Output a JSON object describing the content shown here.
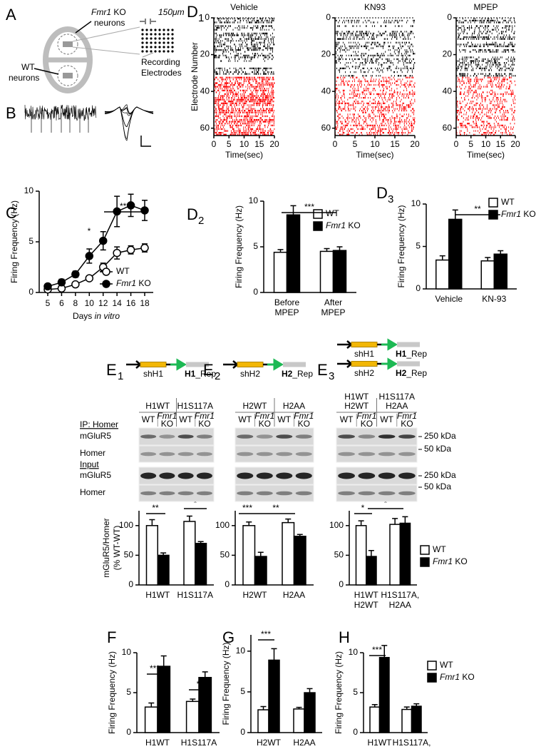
{
  "panels": [
    {
      "letter": "A"
    },
    {
      "letter": "B"
    },
    {
      "letter": "C"
    },
    {
      "letter": "D",
      "sub": "1"
    },
    {
      "letter": "D",
      "sub": "2"
    },
    {
      "letter": "D",
      "sub": "3"
    },
    {
      "letter": "F"
    },
    {
      "letter": "G"
    },
    {
      "letter": "H"
    }
  ],
  "diagram": {
    "ko_label": [
      "Fmr1 KO",
      "neurons"
    ],
    "wt_label": [
      "WT",
      "neurons"
    ],
    "scale": "150μm",
    "electrodes": [
      "Recording",
      "Electrodes"
    ]
  },
  "blot_rows": {
    "ip": "IP: Homer",
    "input": "Input",
    "labels": [
      "mGluR5",
      "Homer",
      "mGluR5",
      "Homer"
    ],
    "markers": [
      "250 kDa",
      "50 kDa",
      "250 kDa",
      "50 kDa"
    ]
  },
  "blot_panels": [
    {
      "letter": "E",
      "sub": "1",
      "constructs": [
        {
          "sh": "shH1",
          "rep": "H1",
          "suffix": "_Rep"
        }
      ],
      "groups": [
        [
          "H1WT"
        ],
        [
          "H1S117A"
        ]
      ],
      "lanes": [
        [
          "WT"
        ],
        [
          "Fmr1",
          "KO"
        ],
        [
          "WT"
        ],
        [
          "Fmr1",
          "KO"
        ]
      ]
    },
    {
      "letter": "E",
      "sub": "2",
      "constructs": [
        {
          "sh": "shH2",
          "rep": "H2",
          "suffix": "_Rep"
        }
      ],
      "groups": [
        [
          "H2WT"
        ],
        [
          "H2AA"
        ]
      ],
      "lanes": [
        [
          "WT"
        ],
        [
          "Fmr1",
          "KO"
        ],
        [
          "WT"
        ],
        [
          "Fmr1",
          "KO"
        ]
      ]
    },
    {
      "letter": "E",
      "sub": "3",
      "constructs": [
        {
          "sh": "shH1",
          "rep": "H1",
          "suffix": "_Rep"
        },
        {
          "sh": "shH2",
          "rep": "H2",
          "suffix": "_Rep"
        }
      ],
      "groups": [
        [
          "H1WT",
          "H2WT"
        ],
        [
          "H1S117A",
          "H2AA"
        ]
      ],
      "lanes": [
        [
          "WT"
        ],
        [
          "Fmr1",
          "KO"
        ],
        [
          "WT"
        ],
        [
          "Fmr1",
          "KO"
        ]
      ]
    }
  ],
  "chart_data": [
    {
      "type": "line",
      "categories": [
        5,
        6,
        8,
        10,
        12,
        14,
        16,
        18
      ],
      "xlabel": "Days in vitro",
      "ylabel": "Firing  Frequency (Hz)",
      "ylim": [
        0,
        10
      ],
      "yticks": [
        0,
        5,
        10
      ],
      "legend": "lower right",
      "series": [
        {
          "name": "WT",
          "color": "#ffffff",
          "values": [
            0.3,
            0.4,
            0.8,
            1.4,
            2.5,
            3.9,
            4.2,
            4.4
          ],
          "errors": [
            0.1,
            0.1,
            0.2,
            0.2,
            0.4,
            0.6,
            0.4,
            0.4
          ]
        },
        {
          "name": "Fmr1 KO",
          "color": "#000000",
          "values": [
            0.6,
            1.0,
            1.8,
            3.6,
            5.1,
            8.0,
            8.6,
            8.1
          ],
          "errors": [
            0.1,
            0.3,
            0.3,
            0.7,
            0.9,
            1.5,
            1.1,
            1.0
          ]
        }
      ],
      "annotations": [
        "*",
        "***"
      ]
    },
    {
      "type": "raster",
      "title": "Vehicle",
      "xlim": [
        0,
        20
      ],
      "xticks": [
        0,
        5,
        10,
        15,
        20
      ],
      "ylim": [
        0,
        64
      ],
      "yticks": [
        0,
        20,
        40,
        60
      ],
      "xlabel": "Time(sec)",
      "ylabel": "Electrode Number",
      "colors": [
        "#000000",
        "#ff0000"
      ]
    },
    {
      "type": "raster",
      "title": "KN93",
      "xlim": [
        0,
        20
      ],
      "xticks": [
        0,
        5,
        10,
        15,
        20
      ],
      "ylim": [
        0,
        64
      ],
      "yticks": [
        0,
        20,
        40,
        60
      ],
      "xlabel": "Time(sec)",
      "colors": [
        "#000000",
        "#ff0000"
      ]
    },
    {
      "type": "raster",
      "title": "MPEP",
      "xlim": [
        0,
        20
      ],
      "xticks": [
        0,
        5,
        10,
        15,
        20
      ],
      "ylim": [
        0,
        64
      ],
      "yticks": [
        0,
        20,
        40,
        60
      ],
      "xlabel": "Time(sec)",
      "colors": [
        "#000000",
        "#ff0000"
      ]
    },
    {
      "type": "bar",
      "categories": [
        [
          "Before",
          "MPEP"
        ],
        [
          "After",
          "MPEP"
        ]
      ],
      "ylabel": "Firing  Frequency (Hz)",
      "ylim": [
        0,
        10
      ],
      "yticks": [
        0,
        5,
        10
      ],
      "legend": "upper right",
      "series": [
        {
          "name": "WT",
          "color": "#ffffff",
          "values": [
            4.4,
            4.5
          ],
          "errors": [
            0.3,
            0.3
          ]
        },
        {
          "name": "Fmr1 KO",
          "color": "#000000",
          "values": [
            8.5,
            4.6
          ],
          "errors": [
            1.0,
            0.4
          ]
        }
      ],
      "annotations": [
        "***"
      ]
    },
    {
      "type": "bar",
      "categories": [
        "Vehicle",
        "KN-93"
      ],
      "ylabel": "Firing  Frequency (Hz)",
      "ylim": [
        0,
        10
      ],
      "yticks": [
        0,
        5,
        10
      ],
      "legend": "upper right",
      "series": [
        {
          "name": "WT",
          "color": "#ffffff",
          "values": [
            3.4,
            3.3
          ],
          "errors": [
            0.5,
            0.4
          ]
        },
        {
          "name": "Fmr1 KO",
          "color": "#000000",
          "values": [
            8.2,
            4.1
          ],
          "errors": [
            1.1,
            0.4
          ]
        }
      ],
      "annotations": [
        "**"
      ]
    },
    {
      "type": "bar",
      "categories": [
        "H1WT",
        "H1S117A"
      ],
      "ylabel": [
        "mGluR5/Homer",
        "(% WT-WT)"
      ],
      "ylim": [
        0,
        125
      ],
      "yticks": [
        0,
        50,
        100
      ],
      "series": [
        {
          "name": "WT",
          "color": "#ffffff",
          "values": [
            100,
            107
          ],
          "errors": [
            10,
            9
          ]
        },
        {
          "name": "Fmr1 KO",
          "color": "#000000",
          "values": [
            50,
            70
          ],
          "errors": [
            4,
            3
          ]
        }
      ],
      "annotations": [
        "**",
        "*"
      ]
    },
    {
      "type": "bar",
      "categories": [
        "H2WT",
        "H2AA"
      ],
      "ylim": [
        0,
        125
      ],
      "yticks": [
        0,
        50,
        100
      ],
      "series": [
        {
          "name": "WT",
          "color": "#ffffff",
          "values": [
            100,
            105
          ],
          "errors": [
            6,
            6
          ]
        },
        {
          "name": "Fmr1 KO",
          "color": "#000000",
          "values": [
            48,
            82
          ],
          "errors": [
            7,
            3
          ]
        }
      ],
      "annotations": [
        "***",
        "**"
      ]
    },
    {
      "type": "bar",
      "categories": [
        [
          "H1WT",
          "H2WT"
        ],
        [
          "H1S117A,",
          "H2AA"
        ]
      ],
      "ylim": [
        0,
        125
      ],
      "yticks": [
        0,
        50,
        100
      ],
      "legend": "right",
      "series": [
        {
          "name": "WT",
          "color": "#ffffff",
          "values": [
            100,
            102
          ],
          "errors": [
            8,
            10
          ]
        },
        {
          "name": "Fmr1 KO",
          "color": "#000000",
          "values": [
            48,
            104
          ],
          "errors": [
            10,
            11
          ]
        }
      ],
      "annotations": [
        "*",
        "*"
      ]
    },
    {
      "type": "bar",
      "categories": [
        "H1WT",
        "H1S117A"
      ],
      "ylabel": "Firing  Frequency (Hz)",
      "ylim": [
        0,
        10
      ],
      "yticks": [
        0,
        5,
        10
      ],
      "series": [
        {
          "name": "WT",
          "color": "#ffffff",
          "values": [
            3.2,
            3.9
          ],
          "errors": [
            0.5,
            0.3
          ]
        },
        {
          "name": "Fmr1 KO",
          "color": "#000000",
          "values": [
            8.3,
            6.9
          ],
          "errors": [
            1.3,
            0.7
          ]
        }
      ],
      "annotations": [
        "***",
        "*"
      ]
    },
    {
      "type": "bar",
      "categories": [
        "H2WT",
        "H2AA"
      ],
      "ylabel": "Firing  Frequency (Hz)",
      "ylim": [
        0,
        12
      ],
      "yticks": [
        0,
        5,
        10
      ],
      "series": [
        {
          "name": "WT",
          "color": "#ffffff",
          "values": [
            2.8,
            2.9
          ],
          "errors": [
            0.4,
            0.2
          ]
        },
        {
          "name": "Fmr1 KO",
          "color": "#000000",
          "values": [
            8.9,
            4.9
          ],
          "errors": [
            1.4,
            0.5
          ]
        }
      ],
      "annotations": [
        "***"
      ]
    },
    {
      "type": "bar",
      "categories": [
        [
          "H1WT",
          "H2WT"
        ],
        [
          "H1S117A,",
          "H2AA"
        ]
      ],
      "ylabel": "Firing  Frequency (Hz)",
      "ylim": [
        0,
        10
      ],
      "yticks": [
        0,
        5,
        10
      ],
      "legend": "upper right",
      "series": [
        {
          "name": "WT",
          "color": "#ffffff",
          "values": [
            3.2,
            2.9
          ],
          "errors": [
            0.3,
            0.3
          ]
        },
        {
          "name": "Fmr1 KO",
          "color": "#000000",
          "values": [
            9.4,
            3.3
          ],
          "errors": [
            1.5,
            0.3
          ]
        }
      ],
      "annotations": [
        "***"
      ]
    }
  ]
}
